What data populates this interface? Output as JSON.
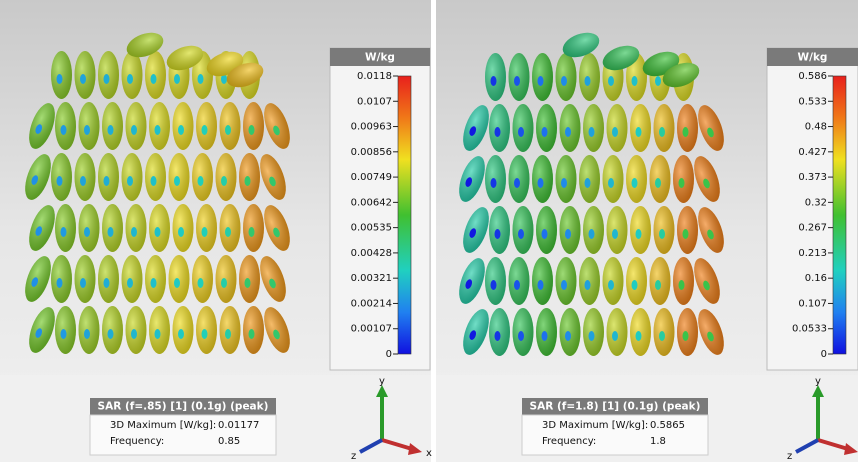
{
  "panels": [
    {
      "unit": "W/kg",
      "ticks": [
        "0.0118",
        "0.0107",
        "0.00963",
        "0.00856",
        "0.00749",
        "0.00642",
        "0.00535",
        "0.00428",
        "0.00321",
        "0.00214",
        "0.00107",
        "0"
      ],
      "info": {
        "title": "SAR (f=.85) [1] (0.1g) (peak)",
        "max_label": "3D Maximum [W/kg]:",
        "max_value": "0.01177",
        "freq_label": "Frequency:",
        "freq_value": "0.85"
      },
      "axes": {
        "y": "y",
        "z": "z",
        "x": "x"
      }
    },
    {
      "unit": "W/kg",
      "ticks": [
        "0.586",
        "0.533",
        "0.48",
        "0.427",
        "0.373",
        "0.32",
        "0.267",
        "0.213",
        "0.16",
        "0.107",
        "0.0533",
        "0"
      ],
      "info": {
        "title": "SAR (f=1.8) [1] (0.1g) (peak)",
        "max_label": "3D Maximum [W/kg]:",
        "max_value": "0.5865",
        "freq_label": "Frequency:",
        "freq_value": "1.8"
      },
      "axes": {
        "y": "y",
        "z": "z",
        "x": "x"
      }
    }
  ]
}
